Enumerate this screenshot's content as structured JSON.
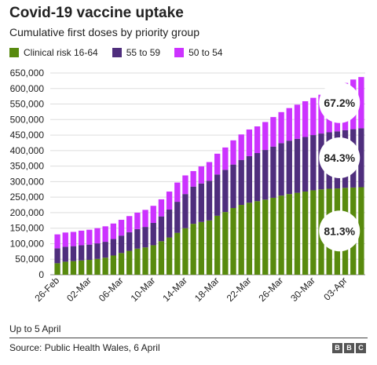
{
  "title": "Covid-19 vaccine uptake",
  "subtitle": "Cumulative first doses by priority group",
  "legend": [
    {
      "label": "Clinical risk 16-64",
      "color": "#588a0e"
    },
    {
      "label": "55 to 59",
      "color": "#4f2e7d"
    },
    {
      "label": "50 to 54",
      "color": "#cc33ff"
    }
  ],
  "footnote": "Up to 5 April",
  "source": "Source: Public Health Wales, 6 April",
  "logo": [
    "B",
    "B",
    "C"
  ],
  "chart_data": {
    "type": "bar",
    "stacked": true,
    "categories": [
      "26-Feb",
      "27-Feb",
      "28-Feb",
      "01-Mar",
      "02-Mar",
      "03-Mar",
      "04-Mar",
      "05-Mar",
      "06-Mar",
      "07-Mar",
      "08-Mar",
      "09-Mar",
      "10-Mar",
      "11-Mar",
      "12-Mar",
      "13-Mar",
      "14-Mar",
      "15-Mar",
      "16-Mar",
      "17-Mar",
      "18-Mar",
      "19-Mar",
      "20-Mar",
      "21-Mar",
      "22-Mar",
      "23-Mar",
      "24-Mar",
      "25-Mar",
      "26-Mar",
      "27-Mar",
      "28-Mar",
      "29-Mar",
      "30-Mar",
      "31-Mar",
      "01-Apr",
      "02-Apr",
      "03-Apr",
      "04-Apr",
      "05-Apr"
    ],
    "xtick_labels": [
      "26-Feb",
      "02-Mar",
      "06-Mar",
      "10-Mar",
      "14-Mar",
      "18-Mar",
      "22-Mar",
      "26-Mar",
      "30-Mar",
      "03-Apr"
    ],
    "series": [
      {
        "name": "Clinical risk 16-64",
        "color": "#588a0e",
        "values": [
          37000,
          42000,
          44000,
          46000,
          48000,
          51000,
          55000,
          62000,
          70000,
          77000,
          84000,
          88000,
          95000,
          108000,
          120000,
          135000,
          150000,
          164000,
          170000,
          175000,
          190000,
          202000,
          215000,
          225000,
          232000,
          237000,
          242000,
          248000,
          255000,
          260000,
          264000,
          268000,
          272000,
          275000,
          277000,
          278000,
          280000,
          281000,
          282000
        ]
      },
      {
        "name": "55 to 59",
        "color": "#4f2e7d",
        "values": [
          48000,
          48000,
          48000,
          49000,
          49000,
          50000,
          51000,
          53000,
          56000,
          60000,
          63000,
          66000,
          72000,
          80000,
          90000,
          100000,
          110000,
          120000,
          124000,
          128000,
          133000,
          136000,
          140000,
          145000,
          150000,
          155000,
          160000,
          165000,
          169000,
          172000,
          174000,
          176000,
          178000,
          180000,
          182000,
          184000,
          186000,
          188000,
          190000
        ]
      },
      {
        "name": "50 to 54",
        "color": "#cc33ff",
        "values": [
          45000,
          46000,
          46000,
          47000,
          48000,
          49000,
          50000,
          50000,
          51000,
          52000,
          53000,
          55000,
          55000,
          55000,
          58000,
          62000,
          60000,
          50000,
          55000,
          60000,
          67000,
          72000,
          78000,
          82000,
          86000,
          86000,
          90000,
          95000,
          100000,
          105000,
          110000,
          115000,
          120000,
          125000,
          140000,
          150000,
          152000,
          160000,
          165000
        ]
      }
    ],
    "annotations": [
      {
        "text": "67.2%",
        "series": "50 to 54"
      },
      {
        "text": "84.3%",
        "series": "55 to 59"
      },
      {
        "text": "81.3%",
        "series": "Clinical risk 16-64"
      }
    ],
    "yticks": [
      0,
      50000,
      100000,
      150000,
      200000,
      250000,
      300000,
      350000,
      400000,
      450000,
      500000,
      550000,
      600000,
      650000
    ],
    "ytick_labels": [
      "0",
      "50,000",
      "100,000",
      "150,000",
      "200,000",
      "250,000",
      "300,000",
      "350,000",
      "400,000",
      "450,000",
      "500,000",
      "550,000",
      "600,000",
      "650,000"
    ],
    "ylim": [
      0,
      650000
    ],
    "grid": true
  }
}
